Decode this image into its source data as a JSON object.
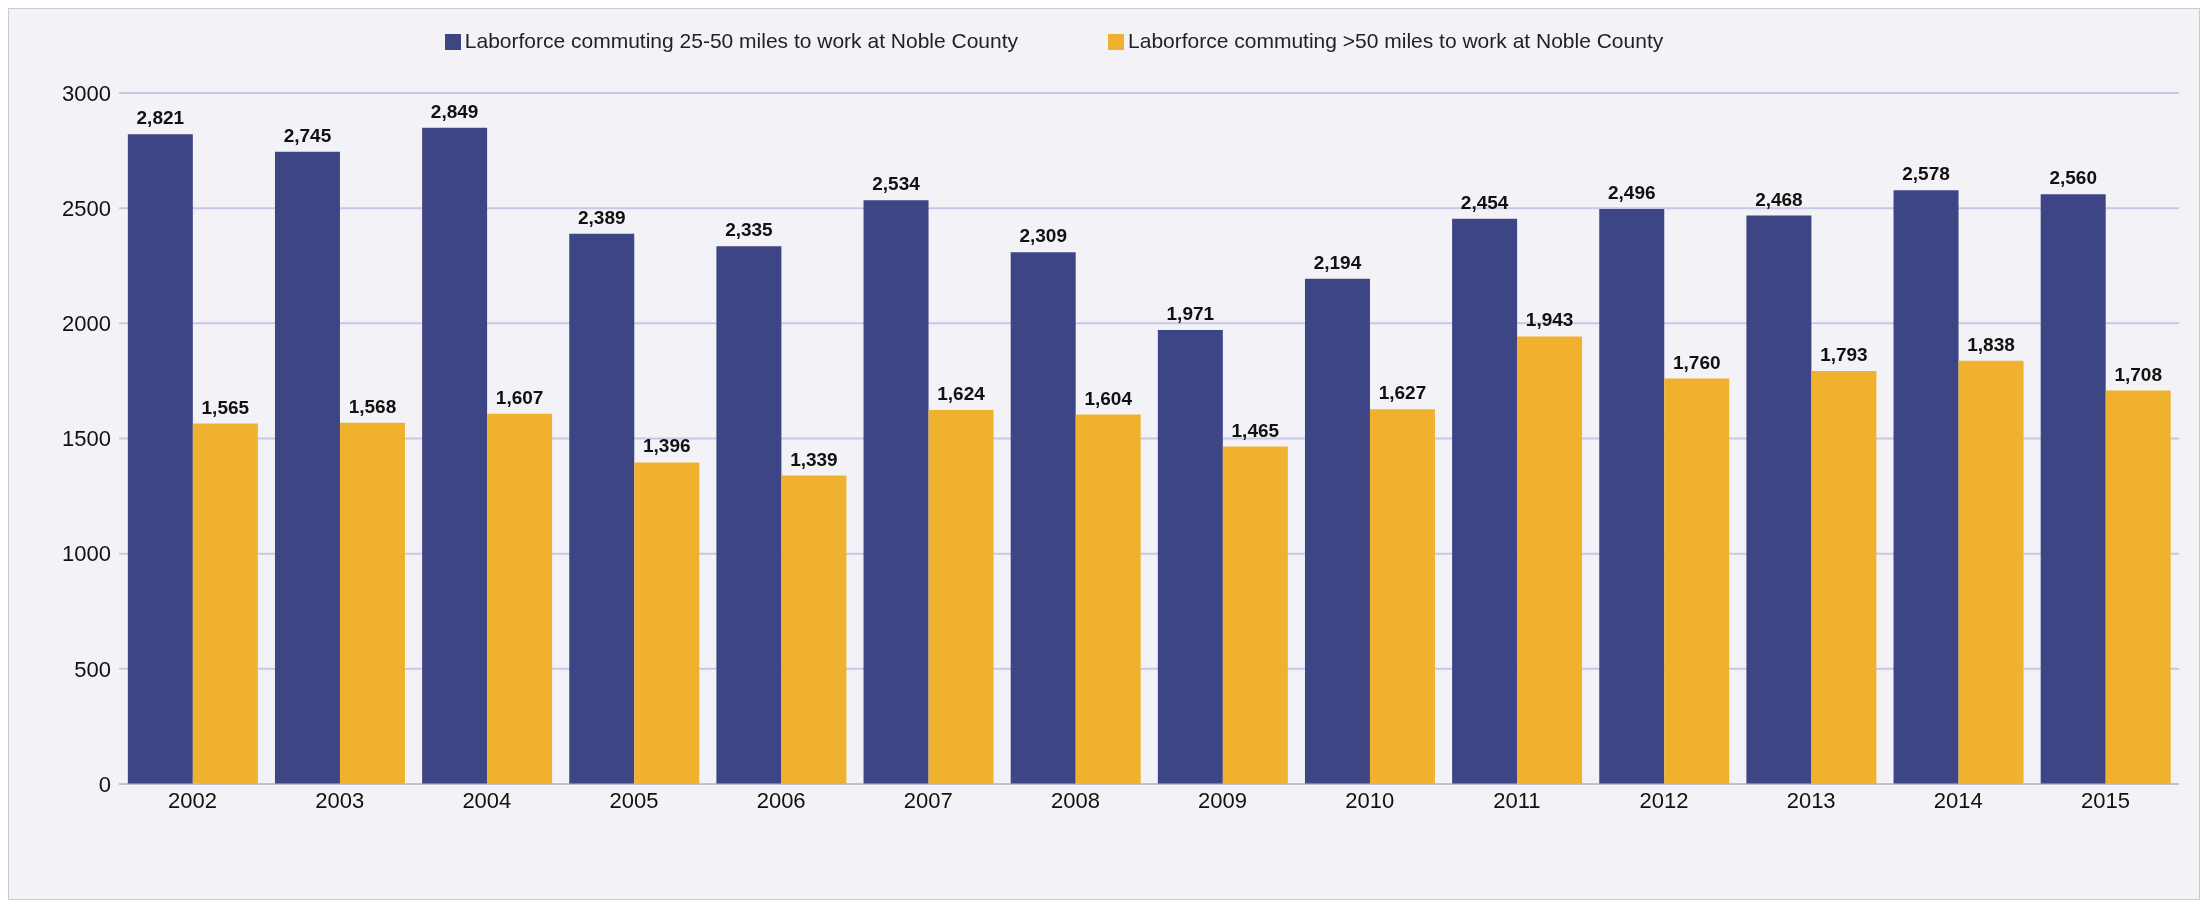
{
  "chart_data": {
    "type": "bar",
    "categories": [
      "2002",
      "2003",
      "2004",
      "2005",
      "2006",
      "2007",
      "2008",
      "2009",
      "2010",
      "2011",
      "2012",
      "2013",
      "2014",
      "2015"
    ],
    "series": [
      {
        "name": "Laborforce commuting 25-50 miles to work at Noble County",
        "color": "#3d4585",
        "values": [
          2821,
          2745,
          2849,
          2389,
          2335,
          2534,
          2309,
          1971,
          2194,
          2454,
          2496,
          2468,
          2578,
          2560
        ],
        "value_labels": [
          "2,821",
          "2,745",
          "2,849",
          "2,389",
          "2,335",
          "2,534",
          "2,309",
          "1,971",
          "2,194",
          "2,454",
          "2,496",
          "2,468",
          "2,578",
          "2,560"
        ]
      },
      {
        "name": "Laborforce commuting >50 miles to work at Noble County",
        "color": "#f0b12f",
        "values": [
          1565,
          1568,
          1607,
          1396,
          1339,
          1624,
          1604,
          1465,
          1627,
          1943,
          1760,
          1793,
          1838,
          1708
        ],
        "value_labels": [
          "1,565",
          "1,568",
          "1,607",
          "1,396",
          "1,339",
          "1,624",
          "1,604",
          "1,465",
          "1,627",
          "1,943",
          "1,760",
          "1,793",
          "1,838",
          "1,708"
        ]
      }
    ],
    "ylim": [
      0,
      3000
    ],
    "yticks": [
      0,
      500,
      1000,
      1500,
      2000,
      2500,
      3000
    ],
    "grid": "y",
    "legend": "top"
  }
}
